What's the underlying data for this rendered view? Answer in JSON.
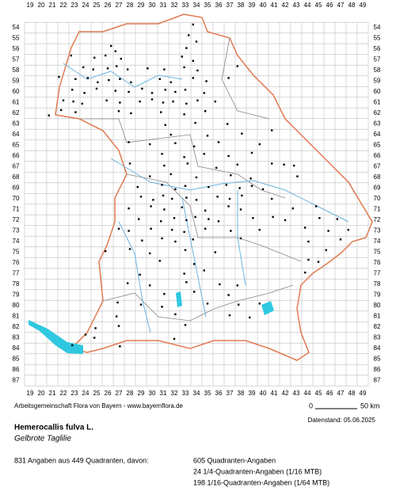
{
  "map": {
    "columns": [
      19,
      20,
      21,
      22,
      23,
      24,
      25,
      26,
      27,
      28,
      29,
      30,
      31,
      32,
      33,
      34,
      35,
      36,
      37,
      38,
      39,
      40,
      41,
      42,
      43,
      44,
      45,
      46,
      47,
      48,
      49
    ],
    "rows": [
      54,
      55,
      56,
      57,
      58,
      59,
      60,
      61,
      62,
      63,
      64,
      65,
      66,
      67,
      68,
      69,
      70,
      71,
      72,
      73,
      74,
      75,
      76,
      77,
      78,
      79,
      80,
      81,
      82,
      83,
      84,
      85,
      86,
      87
    ],
    "occurrences": [
      [
        34.2,
        54.2
      ],
      [
        33.8,
        55.2
      ],
      [
        34.5,
        55.8
      ],
      [
        33.6,
        56.4
      ],
      [
        26.8,
        56.2
      ],
      [
        27.2,
        56.7
      ],
      [
        23.2,
        57.1
      ],
      [
        25.3,
        57.3
      ],
      [
        26.3,
        57.1
      ],
      [
        27.7,
        57.4
      ],
      [
        33.2,
        57.2
      ],
      [
        34.2,
        57.6
      ],
      [
        24.3,
        58.2
      ],
      [
        25.2,
        58.4
      ],
      [
        26.5,
        58.3
      ],
      [
        27.3,
        58.1
      ],
      [
        28.3,
        58.4
      ],
      [
        30.1,
        58.3
      ],
      [
        31.6,
        58.4
      ],
      [
        33.4,
        58.2
      ],
      [
        34.6,
        58.5
      ],
      [
        38.2,
        58.1
      ],
      [
        22.1,
        59.1
      ],
      [
        23.6,
        59.3
      ],
      [
        24.7,
        59.2
      ],
      [
        25.6,
        59.6
      ],
      [
        26.6,
        59.4
      ],
      [
        27.6,
        59.3
      ],
      [
        28.6,
        59.6
      ],
      [
        31.2,
        59.3
      ],
      [
        32.2,
        59.6
      ],
      [
        34.2,
        59.2
      ],
      [
        35.4,
        59.5
      ],
      [
        37.4,
        59.2
      ],
      [
        23.3,
        60.3
      ],
      [
        24.4,
        60.6
      ],
      [
        25.5,
        60.2
      ],
      [
        27.2,
        60.4
      ],
      [
        28.4,
        60.5
      ],
      [
        29.6,
        60.2
      ],
      [
        30.5,
        60.6
      ],
      [
        31.7,
        60.3
      ],
      [
        32.6,
        60.5
      ],
      [
        33.5,
        60.3
      ],
      [
        35.2,
        60.6
      ],
      [
        22.5,
        61.3
      ],
      [
        23.4,
        61.4
      ],
      [
        24.2,
        61.6
      ],
      [
        26.4,
        61.3
      ],
      [
        27.6,
        61.5
      ],
      [
        29.4,
        61.4
      ],
      [
        30.5,
        61.2
      ],
      [
        31.5,
        61.5
      ],
      [
        32.4,
        61.4
      ],
      [
        33.6,
        61.6
      ],
      [
        34.6,
        61.3
      ],
      [
        36.2,
        61.4
      ],
      [
        21.2,
        62.7
      ],
      [
        22.3,
        62.2
      ],
      [
        23.6,
        62.4
      ],
      [
        27.5,
        62.3
      ],
      [
        28.6,
        62.5
      ],
      [
        31.3,
        62.4
      ],
      [
        33.4,
        62.6
      ],
      [
        35.3,
        62.3
      ],
      [
        31.7,
        63.6
      ],
      [
        34.4,
        63.4
      ],
      [
        37.3,
        63.5
      ],
      [
        41.3,
        64.1
      ],
      [
        32.2,
        64.5
      ],
      [
        35.5,
        64.6
      ],
      [
        38.6,
        64.4
      ],
      [
        28.4,
        65.2
      ],
      [
        30.3,
        65.4
      ],
      [
        32.6,
        65.3
      ],
      [
        34.3,
        65.6
      ],
      [
        36.5,
        65.2
      ],
      [
        40.2,
        65.4
      ],
      [
        31.4,
        66.3
      ],
      [
        33.4,
        66.6
      ],
      [
        35.2,
        66.3
      ],
      [
        37.4,
        66.5
      ],
      [
        39.5,
        66.2
      ],
      [
        28.5,
        67.2
      ],
      [
        31.6,
        67.4
      ],
      [
        33.7,
        67.2
      ],
      [
        36.3,
        67.6
      ],
      [
        38.2,
        67.3
      ],
      [
        41.3,
        67.2
      ],
      [
        42.4,
        67.3
      ],
      [
        43.3,
        67.4
      ],
      [
        30.3,
        68.4
      ],
      [
        32.2,
        68.2
      ],
      [
        34.5,
        68.5
      ],
      [
        37.6,
        68.3
      ],
      [
        39.4,
        68.6
      ],
      [
        43.6,
        68.4
      ],
      [
        29.2,
        69.4
      ],
      [
        31.4,
        69.2
      ],
      [
        32.6,
        69.6
      ],
      [
        33.5,
        69.3
      ],
      [
        35.6,
        69.4
      ],
      [
        37.2,
        69.2
      ],
      [
        38.4,
        69.5
      ],
      [
        39.5,
        69.3
      ],
      [
        40.5,
        69.6
      ],
      [
        29.5,
        70.3
      ],
      [
        30.6,
        70.6
      ],
      [
        31.5,
        70.2
      ],
      [
        32.3,
        70.5
      ],
      [
        33.6,
        70.4
      ],
      [
        34.5,
        70.6
      ],
      [
        36.4,
        70.3
      ],
      [
        37.5,
        70.5
      ],
      [
        38.6,
        70.2
      ],
      [
        41.3,
        70.5
      ],
      [
        28.4,
        71.4
      ],
      [
        30.4,
        71.2
      ],
      [
        31.6,
        71.5
      ],
      [
        33.2,
        71.3
      ],
      [
        35.3,
        71.6
      ],
      [
        37.4,
        71.2
      ],
      [
        38.5,
        71.5
      ],
      [
        43.2,
        71.4
      ],
      [
        45.3,
        71.2
      ],
      [
        29.3,
        72.4
      ],
      [
        31.3,
        72.6
      ],
      [
        32.5,
        72.3
      ],
      [
        33.6,
        72.5
      ],
      [
        34.4,
        72.2
      ],
      [
        35.6,
        72.4
      ],
      [
        36.5,
        72.6
      ],
      [
        39.6,
        72.3
      ],
      [
        41.4,
        72.2
      ],
      [
        42.5,
        72.5
      ],
      [
        45.6,
        72.3
      ],
      [
        47.2,
        72.4
      ],
      [
        27.5,
        73.3
      ],
      [
        28.4,
        73.5
      ],
      [
        30.4,
        73.3
      ],
      [
        32.3,
        73.4
      ],
      [
        33.4,
        73.6
      ],
      [
        35.3,
        73.3
      ],
      [
        37.6,
        73.5
      ],
      [
        40.2,
        73.4
      ],
      [
        44.3,
        73.2
      ],
      [
        46.4,
        73.5
      ],
      [
        48.2,
        73.4
      ],
      [
        29.6,
        74.4
      ],
      [
        31.4,
        74.2
      ],
      [
        32.6,
        74.5
      ],
      [
        34.2,
        74.3
      ],
      [
        38.5,
        74.2
      ],
      [
        44.6,
        74.5
      ],
      [
        47.5,
        74.3
      ],
      [
        26.3,
        75.4
      ],
      [
        28.5,
        75.2
      ],
      [
        30.3,
        75.6
      ],
      [
        33.5,
        75.3
      ],
      [
        36.2,
        75.5
      ],
      [
        46.2,
        75.3
      ],
      [
        31.2,
        76.3
      ],
      [
        34.3,
        76.6
      ],
      [
        44.6,
        76.2
      ],
      [
        45.5,
        76.4
      ],
      [
        29.4,
        77.6
      ],
      [
        33.4,
        77.5
      ],
      [
        35.2,
        77.2
      ],
      [
        44.3,
        77.4
      ],
      [
        28.3,
        78.4
      ],
      [
        30.3,
        78.6
      ],
      [
        33.6,
        78.3
      ],
      [
        36.6,
        78.5
      ],
      [
        38.2,
        78.6
      ],
      [
        31.6,
        79.4
      ],
      [
        34.3,
        79.2
      ],
      [
        37.4,
        79.5
      ],
      [
        27.4,
        80.2
      ],
      [
        29.5,
        80.4
      ],
      [
        31.4,
        80.6
      ],
      [
        35.5,
        80.3
      ],
      [
        38.3,
        80.4
      ],
      [
        40.2,
        80.3
      ],
      [
        27.3,
        81.5
      ],
      [
        32.6,
        81.3
      ],
      [
        37.5,
        81.4
      ],
      [
        39.3,
        81.6
      ],
      [
        25.4,
        82.6
      ],
      [
        27.5,
        82.4
      ],
      [
        33.5,
        82.3
      ],
      [
        24.5,
        83.2
      ],
      [
        25.3,
        83.5
      ],
      [
        32.5,
        83.6
      ],
      [
        23.3,
        84.2
      ],
      [
        27.6,
        84.3
      ]
    ],
    "footer": {
      "credit": "Arbeitsgemeinschaft Flora von Bayern - www.bayernflora.de",
      "scale_start": "0",
      "scale_end": "50 km",
      "date": "Datenstand: 05.06.2025"
    },
    "species": {
      "scientific_name": "Hemerocallis fulva L.",
      "common_name": "Gelbrote Taglilie"
    },
    "stats": {
      "summary": "831 Angaben aus 449 Quadranten, davon:",
      "lines": [
        "605 Quadranten-Angaben",
        "24 1/4-Quadranten-Angaben (1/16 MTB)",
        "198 1/16-Quadranten-Angaben (1/64 MTB)"
      ]
    }
  }
}
